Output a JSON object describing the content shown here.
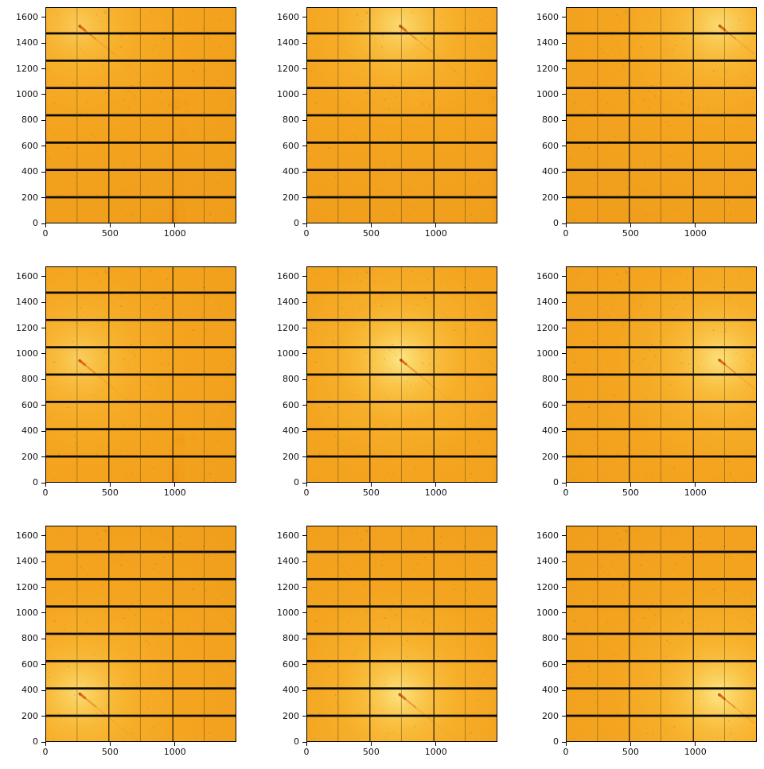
{
  "figure": {
    "background": "#ffffff",
    "description": "3x3 grid of 2D detector images (hot orange colormap) with beam spot at varying positions"
  },
  "chart_data": {
    "type": "heatmap",
    "subtype": "detector-image-grid",
    "grid": {
      "rows": 3,
      "cols": 3
    },
    "title": "",
    "xlabel": "",
    "ylabel": "",
    "xlim": [
      0,
      1475
    ],
    "ylim": [
      0,
      1679
    ],
    "xticks": [
      0,
      500,
      1000
    ],
    "yticks": [
      0,
      200,
      400,
      600,
      800,
      1000,
      1200,
      1400,
      1600
    ],
    "xtick_labels": [
      "0",
      "500",
      "1000"
    ],
    "ytick_labels": [
      "0",
      "200",
      "400",
      "600",
      "800",
      "1000",
      "1200",
      "1400",
      "1600"
    ],
    "colormap": {
      "base": "#f5a31d",
      "halo_inner": "#fde88c",
      "halo_mid": "#fbd061",
      "halo_outer": "#f9bc38",
      "gap_black": "#0d0a06",
      "module_line": "#17110a",
      "chip_line_rgba": "rgba(75,55,15,0.6)",
      "spot": "#dc5c04",
      "streak": "#e06a10",
      "artifact": "#ee8c12",
      "speck_rgba": "rgba(100,70,10,0.35)",
      "spine": "#000000",
      "tick_color": "#000000",
      "label_color": "#111111"
    },
    "detector": {
      "module_gaps_y": [
        [
          195,
          212
        ],
        [
          407,
          424
        ],
        [
          619,
          636
        ],
        [
          831,
          848
        ],
        [
          1043,
          1060
        ],
        [
          1255,
          1272
        ],
        [
          1467,
          1484
        ]
      ],
      "module_gaps_x": [
        [
          487,
          494
        ],
        [
          981,
          988
        ]
      ],
      "chip_lines_x": [
        243,
        731,
        1224
      ]
    },
    "streak_vector": {
      "dx": 620,
      "dy": -510,
      "length": 870
    },
    "panels": [
      {
        "row": 0,
        "col": 0,
        "beam_center": [
          262,
          1535
        ],
        "halo_scale": 0.55,
        "artifacts": [
          {
            "type": "vband",
            "x": 950,
            "w": 130,
            "y0": 0,
            "y1": 960,
            "alpha": 0.15
          },
          {
            "type": "vband",
            "x": 958,
            "w": 58,
            "y0": 0,
            "y1": 300,
            "alpha": 0.45
          },
          {
            "type": "blob",
            "cx": 1005,
            "cy": 925,
            "r": 52,
            "alpha": 0.28
          },
          {
            "type": "blob",
            "cx": 1085,
            "cy": 935,
            "r": 30,
            "alpha": 0.22
          },
          {
            "type": "blob",
            "cx": 1060,
            "cy": 725,
            "r": 40,
            "alpha": 0.14
          }
        ]
      },
      {
        "row": 0,
        "col": 1,
        "beam_center": [
          722,
          1535
        ],
        "halo_scale": 0.8,
        "artifacts": [
          {
            "type": "vband",
            "x": 1440,
            "w": 35,
            "y0": 0,
            "y1": 1060,
            "alpha": 0.35
          },
          {
            "type": "blob",
            "cx": 1440,
            "cy": 965,
            "r": 42,
            "alpha": 0.22
          }
        ]
      },
      {
        "row": 0,
        "col": 2,
        "beam_center": [
          1185,
          1537
        ],
        "halo_scale": 0.8,
        "artifacts": []
      },
      {
        "row": 1,
        "col": 0,
        "beam_center": [
          262,
          951
        ],
        "halo_scale": 0.6,
        "artifacts": [
          {
            "type": "vband",
            "x": 950,
            "w": 130,
            "y0": 0,
            "y1": 430,
            "alpha": 0.18
          },
          {
            "type": "blob",
            "cx": 1040,
            "cy": 330,
            "r": 58,
            "alpha": 0.3
          },
          {
            "type": "blob",
            "cx": 1145,
            "cy": 350,
            "r": 32,
            "alpha": 0.2
          },
          {
            "type": "vband",
            "x": 975,
            "w": 50,
            "y0": 0,
            "y1": 150,
            "alpha": 0.4
          }
        ]
      },
      {
        "row": 1,
        "col": 1,
        "beam_center": [
          727,
          955
        ],
        "halo_scale": 1.0,
        "artifacts": [
          {
            "type": "vband",
            "x": 1440,
            "w": 35,
            "y0": 0,
            "y1": 430,
            "alpha": 0.22
          }
        ]
      },
      {
        "row": 1,
        "col": 2,
        "beam_center": [
          1183,
          955
        ],
        "halo_scale": 0.9,
        "artifacts": []
      },
      {
        "row": 2,
        "col": 0,
        "beam_center": [
          263,
          377
        ],
        "halo_scale": 0.8,
        "artifacts": []
      },
      {
        "row": 2,
        "col": 1,
        "beam_center": [
          718,
          371
        ],
        "halo_scale": 0.95,
        "artifacts": []
      },
      {
        "row": 2,
        "col": 2,
        "beam_center": [
          1182,
          370
        ],
        "halo_scale": 1.0,
        "artifacts": []
      }
    ]
  }
}
